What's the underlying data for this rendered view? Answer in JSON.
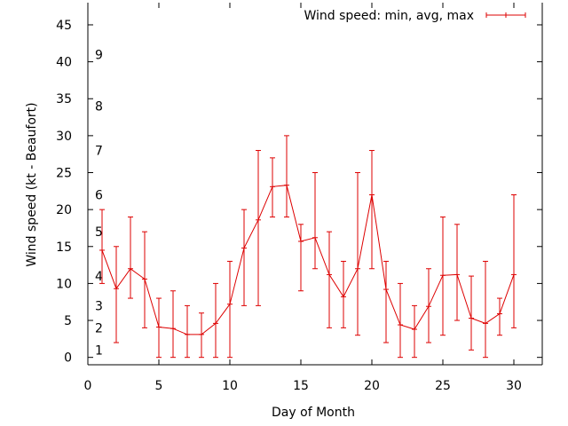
{
  "chart_data": {
    "type": "line",
    "title": "",
    "xlabel": "Day of Month",
    "ylabel": "Wind speed (kt - Beaufort)",
    "xlim": [
      0,
      32
    ],
    "ylim": [
      -1,
      48
    ],
    "x_ticks": [
      0,
      5,
      10,
      15,
      20,
      25,
      30
    ],
    "y_ticks": [
      0,
      5,
      10,
      15,
      20,
      25,
      30,
      35,
      40,
      45
    ],
    "grid": false,
    "legend_position": "top-right",
    "series_color": "#dd0000",
    "beaufort_labels": [
      {
        "label": "1",
        "y": 1
      },
      {
        "label": "2",
        "y": 4
      },
      {
        "label": "3",
        "y": 7
      },
      {
        "label": "4",
        "y": 11
      },
      {
        "label": "5",
        "y": 17
      },
      {
        "label": "6",
        "y": 22
      },
      {
        "label": "7",
        "y": 28
      },
      {
        "label": "8",
        "y": 34
      },
      {
        "label": "9",
        "y": 41
      }
    ],
    "series": [
      {
        "name": "Wind speed: min, avg, max",
        "x": [
          1,
          2,
          3,
          4,
          5,
          6,
          7,
          8,
          9,
          10,
          11,
          12,
          13,
          14,
          15,
          16,
          17,
          18,
          19,
          20,
          21,
          22,
          23,
          24,
          25,
          26,
          27,
          28,
          29,
          30
        ],
        "avg": [
          14.5,
          9.3,
          12,
          10.6,
          4.1,
          3.9,
          3.1,
          3.1,
          4.6,
          7.2,
          14.8,
          18.6,
          23.1,
          23.3,
          15.7,
          16.2,
          11.2,
          8.2,
          12,
          22,
          9.2,
          4.4,
          3.8,
          6.9,
          11.1,
          11.2,
          5.3,
          4.6,
          5.9,
          11.2
        ],
        "min": [
          10,
          2,
          8,
          4,
          0,
          0,
          0,
          0,
          0,
          0,
          7,
          7,
          19,
          19,
          9,
          12,
          4,
          4,
          3,
          12,
          2,
          0,
          0,
          2,
          3,
          5,
          1,
          0,
          3,
          4
        ],
        "max": [
          20,
          15,
          19,
          17,
          8,
          9,
          7,
          6,
          10,
          13,
          20,
          28,
          27,
          30,
          18,
          25,
          17,
          13,
          25,
          28,
          13,
          10,
          7,
          12,
          19,
          18,
          11,
          13,
          8,
          22
        ]
      }
    ]
  }
}
